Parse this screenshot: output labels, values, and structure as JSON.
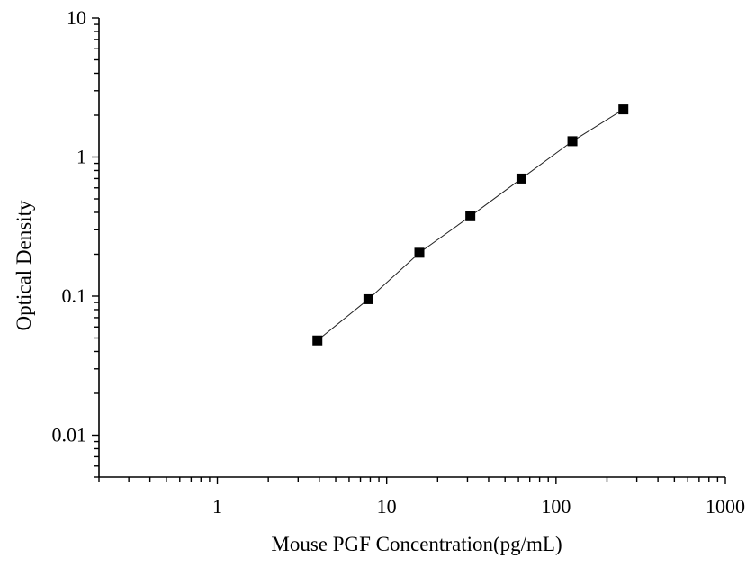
{
  "chart_data": {
    "type": "scatter",
    "xlabel": "Mouse PGF Concentration(pg/mL)",
    "ylabel": "Optical Density",
    "x_scale": "log",
    "y_scale": "log",
    "xlim": [
      0.2,
      1000
    ],
    "ylim": [
      0.005,
      10
    ],
    "x_ticks": [
      1,
      10,
      100,
      1000
    ],
    "x_tick_labels": [
      "1",
      "10",
      "100",
      "1000"
    ],
    "y_ticks": [
      0.01,
      0.1,
      1,
      10
    ],
    "y_tick_labels": [
      "0.01",
      "0.1",
      "1",
      "10"
    ],
    "grid": false,
    "series": [
      {
        "x": [
          3.9,
          7.8,
          15.6,
          31.2,
          62.5,
          125,
          250
        ],
        "y": [
          0.048,
          0.095,
          0.205,
          0.375,
          0.7,
          1.3,
          2.2
        ]
      }
    ],
    "fit_line": true,
    "marker": "square",
    "color": "#000000"
  }
}
